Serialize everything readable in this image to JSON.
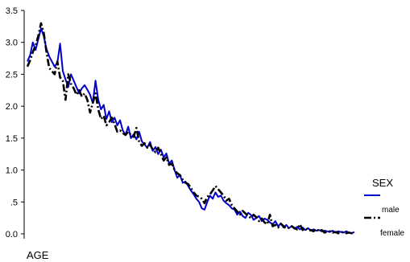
{
  "chart_data": {
    "type": "line",
    "xlabel": "AGE",
    "ylabel": "",
    "ylim": [
      0,
      3.5
    ],
    "yticks": [
      "0.0",
      ".5",
      "1.0",
      "1.5",
      "2.0",
      "2.5",
      "3.0",
      "3.5"
    ],
    "grid": false,
    "legend": {
      "title": "SEX",
      "placement": "right"
    },
    "x_count": 121,
    "series": [
      {
        "name": "male",
        "color": "#0000cc",
        "dash": "solid",
        "values": [
          2.7,
          2.8,
          3.0,
          2.88,
          3.05,
          3.22,
          3.1,
          2.9,
          2.78,
          2.7,
          2.62,
          2.68,
          2.98,
          2.55,
          2.42,
          2.3,
          2.5,
          2.4,
          2.3,
          2.2,
          2.28,
          2.33,
          2.26,
          2.18,
          2.05,
          2.4,
          2.1,
          1.95,
          2.02,
          1.8,
          1.92,
          1.75,
          1.82,
          1.7,
          1.78,
          1.62,
          1.55,
          1.68,
          1.5,
          1.56,
          1.48,
          1.6,
          1.45,
          1.4,
          1.35,
          1.44,
          1.3,
          1.36,
          1.25,
          1.32,
          1.2,
          1.26,
          1.1,
          1.15,
          1.0,
          0.88,
          0.92,
          0.8,
          0.82,
          0.75,
          0.68,
          0.62,
          0.55,
          0.5,
          0.4,
          0.38,
          0.5,
          0.6,
          0.55,
          0.65,
          0.58,
          0.6,
          0.52,
          0.48,
          0.45,
          0.4,
          0.38,
          0.3,
          0.35,
          0.28,
          0.25,
          0.33,
          0.3,
          0.22,
          0.25,
          0.28,
          0.2,
          0.24,
          0.22,
          0.18,
          0.15,
          0.2,
          0.12,
          0.16,
          0.1,
          0.14,
          0.09,
          0.12,
          0.08,
          0.11,
          0.07,
          0.1,
          0.06,
          0.09,
          0.05,
          0.07,
          0.05,
          0.06,
          0.04,
          0.05,
          0.04,
          0.03,
          0.05,
          0.02,
          0.04,
          0.03,
          0.02,
          0.04,
          0.02,
          0.01,
          0.03
        ]
      },
      {
        "name": "female",
        "color": "#000000",
        "dash": "dashdot",
        "values": [
          2.62,
          2.72,
          2.85,
          2.95,
          3.1,
          3.3,
          3.15,
          2.85,
          2.6,
          2.55,
          2.5,
          2.7,
          2.45,
          2.4,
          2.1,
          2.5,
          2.35,
          2.28,
          2.18,
          2.25,
          2.15,
          2.2,
          2.1,
          1.9,
          2.05,
          2.2,
          1.95,
          1.8,
          1.85,
          1.7,
          1.75,
          1.82,
          1.72,
          1.6,
          1.62,
          1.58,
          1.55,
          1.6,
          1.55,
          1.52,
          1.66,
          1.45,
          1.38,
          1.42,
          1.35,
          1.4,
          1.32,
          1.28,
          1.35,
          1.25,
          1.15,
          1.2,
          1.08,
          1.1,
          1.0,
          0.95,
          0.92,
          0.85,
          0.8,
          0.78,
          0.72,
          0.65,
          0.6,
          0.58,
          0.55,
          0.48,
          0.58,
          0.62,
          0.68,
          0.75,
          0.7,
          0.65,
          0.6,
          0.52,
          0.55,
          0.45,
          0.4,
          0.35,
          0.3,
          0.36,
          0.32,
          0.28,
          0.25,
          0.3,
          0.26,
          0.2,
          0.24,
          0.18,
          0.15,
          0.3,
          0.12,
          0.14,
          0.1,
          0.16,
          0.12,
          0.08,
          0.1,
          0.12,
          0.09,
          0.07,
          0.15,
          0.06,
          0.09,
          0.05,
          0.06,
          0.04,
          0.08,
          0.04,
          0.06,
          0.02,
          0.03,
          0.04,
          0.02,
          0.03,
          0.01,
          0.02,
          0.03,
          0.01,
          0.02,
          0.01,
          0.02
        ]
      }
    ]
  }
}
